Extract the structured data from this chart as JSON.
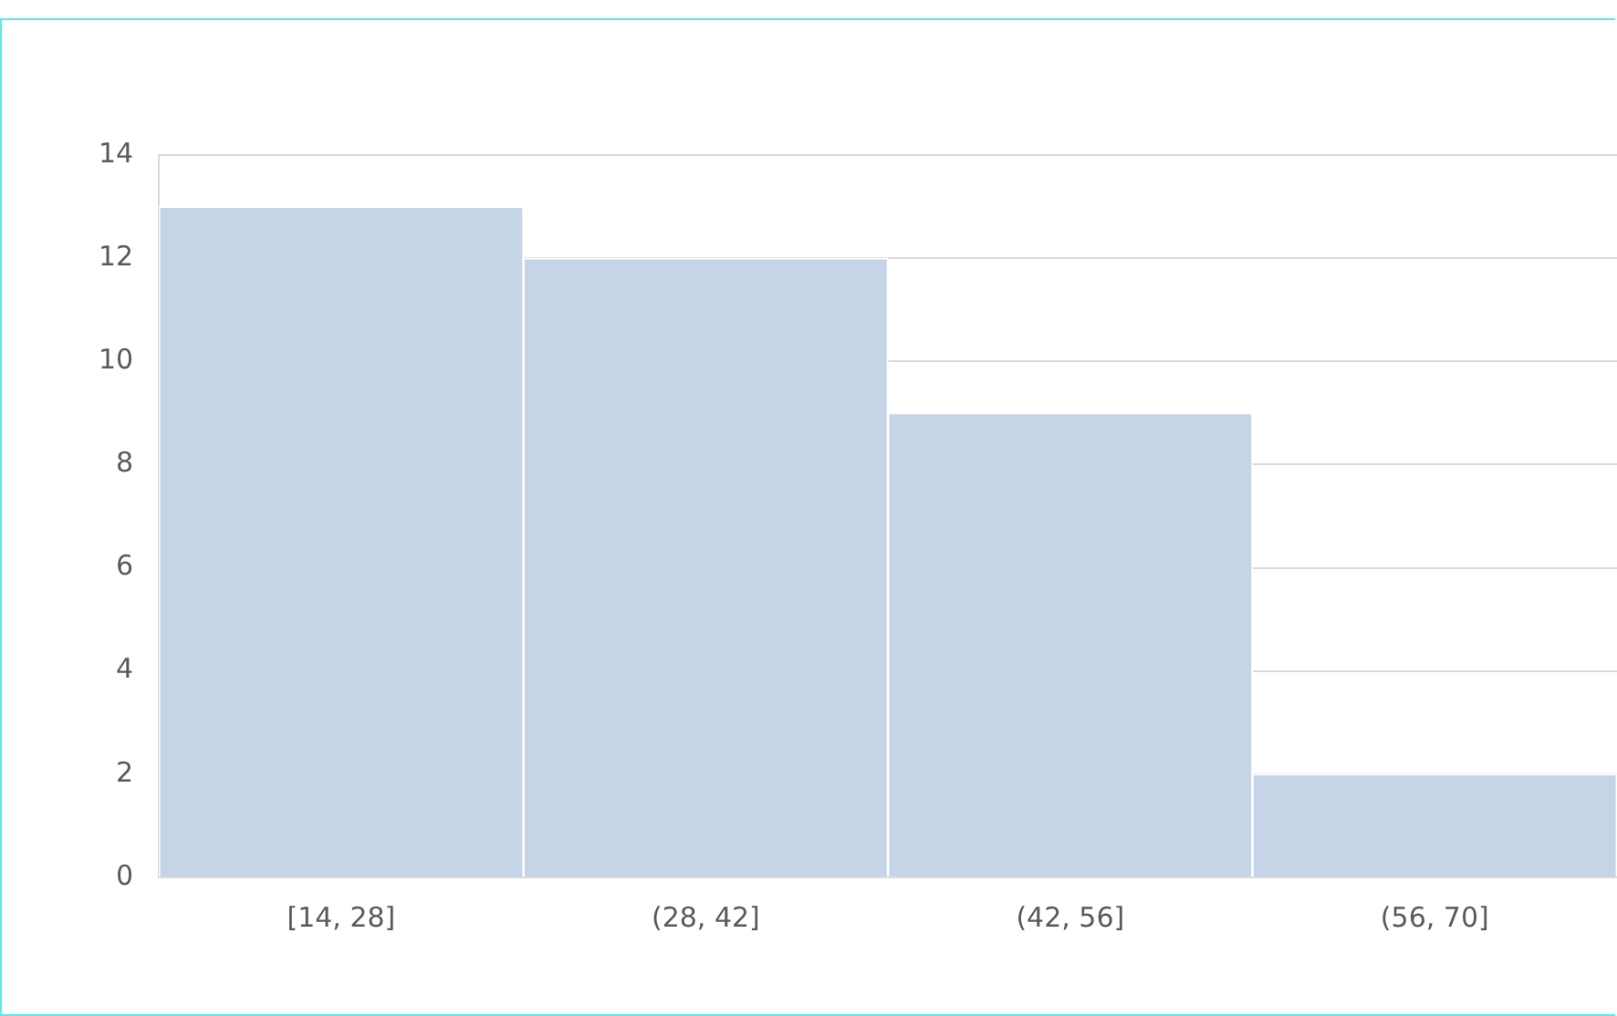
{
  "chart_data": {
    "type": "bar",
    "categories": [
      "[14, 28]",
      "(28, 42]",
      "(42, 56]",
      "(56, 70]"
    ],
    "series": [
      {
        "color": "#c6d4e8",
        "values": [
          13,
          12,
          9,
          2
        ]
      }
    ],
    "ylim": [
      0,
      14
    ],
    "yticks": [
      0,
      2,
      4,
      6,
      8,
      10,
      12,
      14
    ],
    "grid": "y",
    "legend": false
  }
}
